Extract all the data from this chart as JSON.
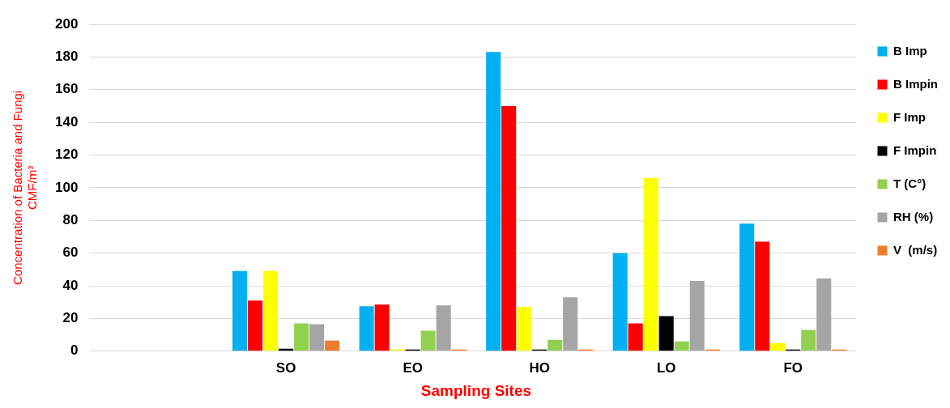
{
  "chart_data": {
    "type": "bar",
    "xlabel": "Sampling Sites",
    "ylabel": "Concentration of Bacteria and Fungi\nCMF/m³",
    "categories": [
      null,
      "SO",
      "EO",
      "HO",
      "LO",
      "FO"
    ],
    "series": [
      {
        "name": "B Imp",
        "color": "#00b0f0",
        "values": [
          null,
          49,
          27.5,
          183,
          60,
          78
        ]
      },
      {
        "name": "B Impin",
        "color": "#ff0000",
        "values": [
          null,
          31,
          28.5,
          150,
          17,
          67
        ]
      },
      {
        "name": "F Imp",
        "color": "#ffff00",
        "values": [
          null,
          49,
          1,
          27,
          106,
          5
        ]
      },
      {
        "name": "F Impin",
        "color": "#000000",
        "values": [
          null,
          1.5,
          1,
          1,
          21.5,
          1
        ]
      },
      {
        "name": "T (C°)",
        "color": "#92d050",
        "values": [
          null,
          17,
          12.5,
          7,
          6,
          13
        ]
      },
      {
        "name": "RH (%)",
        "color": "#a5a5a5",
        "values": [
          null,
          16.5,
          28,
          33,
          43,
          44.5
        ]
      },
      {
        "name": "V  (m/s)",
        "color": "#ed7d31",
        "values": [
          null,
          6.5,
          1,
          1,
          1,
          1
        ]
      }
    ],
    "ylim": [
      0,
      200
    ],
    "yticks": [
      0,
      20,
      40,
      60,
      80,
      100,
      120,
      140,
      160,
      180,
      200
    ],
    "grid": "y",
    "legend": "right"
  }
}
